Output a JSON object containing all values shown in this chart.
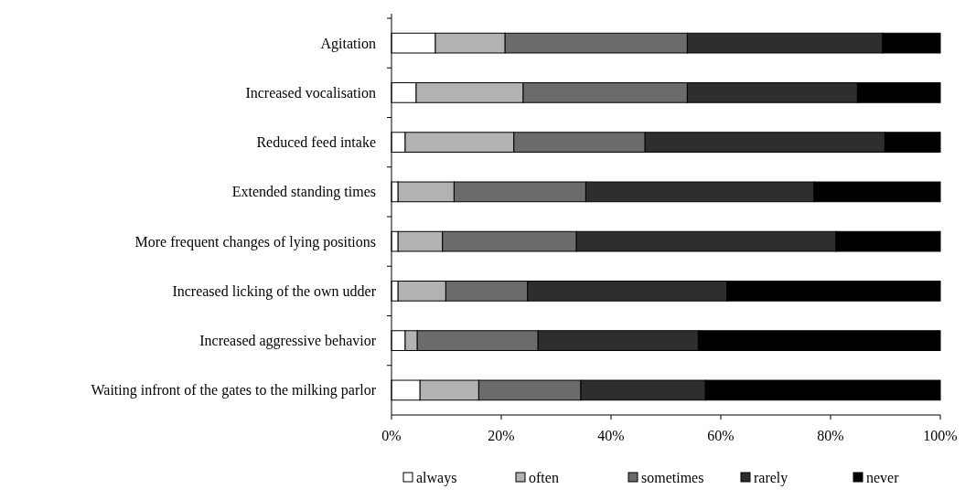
{
  "chart_data": {
    "type": "bar",
    "orientation": "horizontal",
    "stacked": true,
    "categories": [
      "Agitation",
      "Increased vocalisation",
      "Reduced feed intake",
      "Extended standing times",
      "More frequent changes of lying positions",
      "Increased licking of the own udder",
      "Increased aggressive behavior",
      "Waiting infront of the gates to the milking parlor"
    ],
    "series": [
      {
        "name": "always",
        "color": "#ffffff",
        "values": [
          8.0,
          4.5,
          2.5,
          1.2,
          1.2,
          1.2,
          2.5,
          5.2
        ]
      },
      {
        "name": "often",
        "color": "#b2b2b2",
        "values": [
          12.7,
          19.5,
          19.8,
          10.2,
          8.1,
          8.7,
          2.2,
          10.7
        ]
      },
      {
        "name": "sometimes",
        "color": "#6b6b6b",
        "values": [
          33.2,
          29.9,
          23.9,
          24.0,
          24.4,
          14.9,
          22.0,
          18.6
        ]
      },
      {
        "name": "rarely",
        "color": "#2e2e2e",
        "values": [
          35.6,
          31.0,
          43.7,
          41.6,
          47.3,
          36.3,
          29.2,
          22.7
        ]
      },
      {
        "name": "never",
        "color": "#000000",
        "values": [
          10.5,
          15.1,
          10.1,
          23.0,
          19.0,
          38.9,
          44.1,
          42.8
        ]
      }
    ],
    "xlim": [
      0,
      100
    ],
    "xticks": [
      {
        "value": 0,
        "label": "0%"
      },
      {
        "value": 20,
        "label": "20%"
      },
      {
        "value": 40,
        "label": "40%"
      },
      {
        "value": 60,
        "label": "60%"
      },
      {
        "value": 80,
        "label": "80%"
      },
      {
        "value": 100,
        "label": "100%"
      }
    ],
    "grid": false,
    "legend": "bottom"
  }
}
